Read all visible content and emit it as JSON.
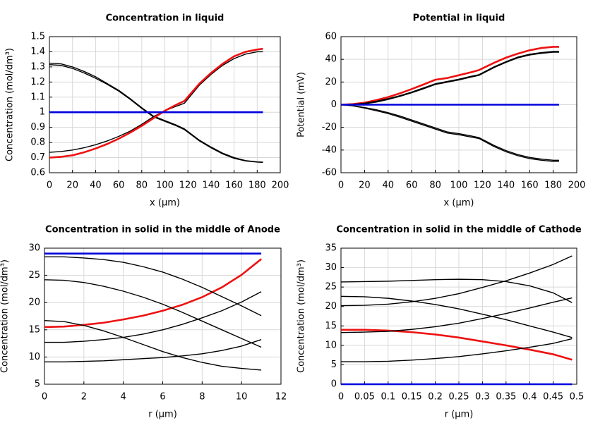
{
  "chart_data": [
    {
      "type": "line",
      "title": "Concentration in liquid",
      "xlabel": "x (µm)",
      "ylabel": "Concentration (mol/dm³)",
      "x": [
        0,
        10,
        20,
        30,
        40,
        50,
        60,
        70,
        80,
        90,
        100,
        110,
        117,
        130,
        140,
        150,
        160,
        170,
        180,
        185
      ],
      "xlim": [
        0,
        200
      ],
      "xticks": [
        0,
        20,
        40,
        60,
        80,
        100,
        120,
        140,
        160,
        180,
        200
      ],
      "ylim": [
        0.6,
        1.5
      ],
      "yticks": [
        0.6,
        0.7,
        0.8,
        0.9,
        1,
        1.1,
        1.2,
        1.3,
        1.4,
        1.5
      ],
      "grid": true,
      "series": [
        {
          "color": "#000000",
          "values": [
            1.325,
            1.32,
            1.3,
            1.27,
            1.235,
            1.19,
            1.145,
            1.09,
            1.03,
            0.975,
            0.945,
            0.915,
            0.89,
            0.815,
            0.77,
            0.73,
            0.7,
            0.68,
            0.672,
            0.67
          ]
        },
        {
          "color": "#000000",
          "values": [
            1.315,
            1.31,
            1.29,
            1.26,
            1.225,
            1.185,
            1.14,
            1.085,
            1.025,
            0.97,
            0.94,
            0.91,
            0.885,
            0.81,
            0.765,
            0.725,
            0.695,
            0.678,
            0.67,
            0.668
          ]
        },
        {
          "color": "#000000",
          "values": [
            0.735,
            0.74,
            0.75,
            0.765,
            0.785,
            0.81,
            0.84,
            0.875,
            0.92,
            0.97,
            1.01,
            1.04,
            1.06,
            1.18,
            1.25,
            1.31,
            1.355,
            1.385,
            1.4,
            1.4
          ]
        },
        {
          "color": "#ee1111",
          "values": [
            0.7,
            0.705,
            0.715,
            0.735,
            0.76,
            0.79,
            0.825,
            0.865,
            0.91,
            0.96,
            1.01,
            1.05,
            1.075,
            1.19,
            1.26,
            1.32,
            1.37,
            1.4,
            1.415,
            1.42
          ]
        },
        {
          "color": "#0000dd",
          "values": [
            1,
            1,
            1,
            1,
            1,
            1,
            1,
            1,
            1,
            1,
            1,
            1,
            1,
            1,
            1,
            1,
            1,
            1,
            1,
            1
          ]
        }
      ]
    },
    {
      "type": "line",
      "title": "Potential in liquid",
      "xlabel": "x (µm)",
      "ylabel": "Potential (mV)",
      "x": [
        0,
        10,
        20,
        30,
        40,
        50,
        60,
        70,
        80,
        90,
        100,
        110,
        117,
        130,
        140,
        150,
        160,
        170,
        180,
        185
      ],
      "xlim": [
        0,
        200
      ],
      "xticks": [
        0,
        20,
        40,
        60,
        80,
        100,
        120,
        140,
        160,
        180,
        200
      ],
      "ylim": [
        -60,
        60
      ],
      "yticks": [
        -60,
        -40,
        -20,
        0,
        20,
        40,
        60
      ],
      "grid": true,
      "series": [
        {
          "color": "#ee1111",
          "values": [
            0,
            0.5,
            1.8,
            4,
            6.7,
            10,
            13.8,
            17.8,
            22,
            23.5,
            26,
            28.5,
            30.5,
            37,
            41.5,
            45,
            48,
            50,
            51,
            51
          ]
        },
        {
          "color": "#000000",
          "values": [
            0,
            0.3,
            1.3,
            3,
            5.3,
            8,
            11.2,
            14.8,
            18.5,
            20.5,
            22.5,
            25,
            26.5,
            33.5,
            38,
            42,
            44.5,
            46,
            47,
            47
          ]
        },
        {
          "color": "#000000",
          "values": [
            0,
            0,
            0.8,
            2.3,
            4.6,
            7.3,
            10.5,
            14,
            17.8,
            19.8,
            21.8,
            24.3,
            25.8,
            32.8,
            37.3,
            41.3,
            43.8,
            45.3,
            46.3,
            46.3
          ]
        },
        {
          "color": "#000000",
          "values": [
            0,
            -0.8,
            -2.5,
            -4.5,
            -7,
            -10,
            -13.5,
            -17,
            -20.5,
            -24,
            -25.5,
            -27.5,
            -29,
            -36,
            -40.5,
            -44,
            -46.5,
            -48,
            -49,
            -49
          ]
        },
        {
          "color": "#000000",
          "values": [
            0,
            -1,
            -3,
            -5.3,
            -7.8,
            -11,
            -14.5,
            -18,
            -21.5,
            -25,
            -26.5,
            -28.5,
            -29.8,
            -37,
            -41.5,
            -45,
            -47.5,
            -49,
            -50,
            -50
          ]
        },
        {
          "color": "#0000dd",
          "values": [
            0,
            0,
            0,
            0,
            0,
            0,
            0,
            0,
            0,
            0,
            0,
            0,
            0,
            0,
            0,
            0,
            0,
            0,
            0,
            0
          ]
        }
      ]
    },
    {
      "type": "line",
      "title": "Concentration in solid in the middle of Anode",
      "xlabel": "r (µm)",
      "ylabel": "Concentration (mol/dm³)",
      "x": [
        0,
        1,
        2,
        3,
        4,
        5,
        6,
        7,
        8,
        9,
        10,
        11
      ],
      "xlim": [
        0,
        12
      ],
      "xticks": [
        0,
        2,
        4,
        6,
        8,
        10,
        12
      ],
      "ylim": [
        5,
        30
      ],
      "yticks": [
        5,
        10,
        15,
        20,
        25,
        30
      ],
      "grid": true,
      "series": [
        {
          "color": "#0000dd",
          "values": [
            29,
            29,
            29,
            29,
            29,
            29,
            29,
            29,
            29,
            29,
            29,
            29
          ]
        },
        {
          "color": "#ee1111",
          "values": [
            15.5,
            15.6,
            15.9,
            16.3,
            16.9,
            17.6,
            18.5,
            19.6,
            21,
            22.8,
            25.1,
            28
          ]
        },
        {
          "color": "#000000",
          "values": [
            28.4,
            28.4,
            28.2,
            27.9,
            27.4,
            26.6,
            25.6,
            24.3,
            22.8,
            21.1,
            19.4,
            17.6
          ]
        },
        {
          "color": "#000000",
          "values": [
            24.2,
            24.1,
            23.7,
            23.0,
            22.1,
            21.0,
            19.7,
            18.2,
            16.6,
            15.0,
            13.4,
            11.8
          ]
        },
        {
          "color": "#000000",
          "values": [
            12.7,
            12.7,
            12.9,
            13.2,
            13.6,
            14.2,
            15.0,
            16.0,
            17.2,
            18.5,
            20.1,
            22.0
          ]
        },
        {
          "color": "#000000",
          "values": [
            16.7,
            16.5,
            15.8,
            14.8,
            13.6,
            12.3,
            11.0,
            9.9,
            9.0,
            8.3,
            7.9,
            7.6
          ]
        },
        {
          "color": "#000000",
          "values": [
            9.1,
            9.1,
            9.2,
            9.3,
            9.5,
            9.7,
            9.9,
            10.2,
            10.6,
            11.2,
            12.0,
            13.2
          ]
        }
      ]
    },
    {
      "type": "line",
      "title": "Concentration in solid in the middle of Cathode",
      "xlabel": "r (µm)",
      "ylabel": "Concentration (mol/dm³)",
      "x": [
        0,
        0.05,
        0.1,
        0.15,
        0.2,
        0.25,
        0.3,
        0.35,
        0.4,
        0.45,
        0.49
      ],
      "xlim": [
        0,
        0.5
      ],
      "xticks": [
        0,
        0.05,
        0.1,
        0.15,
        0.2,
        0.25,
        0.3,
        0.35,
        0.4,
        0.45,
        0.5
      ],
      "ylim": [
        0,
        35
      ],
      "yticks": [
        0,
        5,
        10,
        15,
        20,
        25,
        30,
        35
      ],
      "grid": true,
      "series": [
        {
          "color": "#0000dd",
          "values": [
            0,
            0,
            0,
            0,
            0,
            0,
            0,
            0,
            0,
            0,
            0
          ]
        },
        {
          "color": "#ee1111",
          "values": [
            14,
            14,
            13.8,
            13.4,
            12.8,
            12.0,
            11.0,
            10.0,
            8.9,
            7.7,
            6.3
          ]
        },
        {
          "color": "#000000",
          "values": [
            26.3,
            26.4,
            26.5,
            26.7,
            26.9,
            27.0,
            26.9,
            26.4,
            25.3,
            23.5,
            21.0
          ]
        },
        {
          "color": "#000000",
          "values": [
            22.6,
            22.5,
            22.1,
            21.4,
            20.5,
            19.4,
            18.0,
            16.6,
            15.0,
            13.4,
            12.0
          ]
        },
        {
          "color": "#000000",
          "values": [
            20.2,
            20.3,
            20.6,
            21.2,
            22.1,
            23.3,
            24.9,
            26.6,
            28.6,
            30.8,
            33.0
          ]
        },
        {
          "color": "#000000",
          "values": [
            13.3,
            13.4,
            13.6,
            14.1,
            14.8,
            15.7,
            16.9,
            18.2,
            19.6,
            21.1,
            22.2
          ]
        },
        {
          "color": "#000000",
          "values": [
            5.8,
            5.8,
            5.9,
            6.2,
            6.6,
            7.1,
            7.8,
            8.6,
            9.5,
            10.5,
            11.7
          ]
        }
      ]
    }
  ]
}
